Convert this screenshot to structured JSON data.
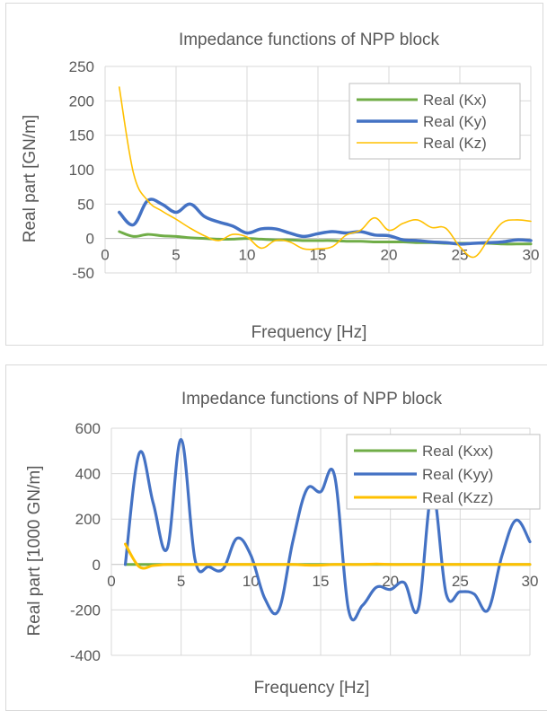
{
  "chart_data": [
    {
      "type": "line",
      "title": "Impedance functions of NPP block",
      "xlabel": "Frequency [Hz]",
      "ylabel": "Real part [GN/m]",
      "xlim": [
        0,
        30
      ],
      "ylim": [
        -50,
        250
      ],
      "xticks": [
        "0",
        "5",
        "10",
        "15",
        "20",
        "25",
        "30"
      ],
      "yticks": [
        "250",
        "200",
        "150",
        "100",
        "50",
        "0",
        "-50"
      ],
      "grid": "horizontal and vertical",
      "legend_position": "top-right",
      "series": [
        {
          "name": "Real (Kx)",
          "color": "#70ad47",
          "x": [
            1,
            2,
            3,
            4,
            5,
            6,
            7,
            8,
            9,
            10,
            11,
            12,
            13,
            14,
            15,
            16,
            17,
            18,
            19,
            20,
            21,
            22,
            23,
            24,
            25,
            26,
            27,
            28,
            29,
            30
          ],
          "y": [
            10,
            3,
            6,
            4,
            3,
            1,
            0,
            -1,
            -1,
            0,
            -1,
            -2,
            -2,
            -3,
            -3,
            -3,
            -4,
            -4,
            -5,
            -5,
            -5,
            -6,
            -6,
            -7,
            -7,
            -7,
            -7,
            -8,
            -8,
            -8
          ]
        },
        {
          "name": "Real (Ky)",
          "color": "#4472c4",
          "x": [
            1,
            2,
            3,
            4,
            5,
            6,
            7,
            8,
            9,
            10,
            11,
            12,
            13,
            14,
            15,
            16,
            17,
            18,
            19,
            20,
            21,
            22,
            23,
            24,
            25,
            26,
            27,
            28,
            29,
            30
          ],
          "y": [
            38,
            20,
            55,
            50,
            38,
            50,
            32,
            24,
            18,
            8,
            14,
            14,
            8,
            3,
            7,
            10,
            8,
            10,
            5,
            4,
            -2,
            -3,
            -5,
            -6,
            -8,
            -7,
            -6,
            -5,
            -2,
            -3
          ]
        },
        {
          "name": "Real (Kz)",
          "color": "#ffc000",
          "x": [
            1,
            2,
            3,
            4,
            5,
            6,
            7,
            8,
            9,
            10,
            11,
            12,
            13,
            14,
            15,
            16,
            17,
            18,
            19,
            20,
            21,
            22,
            23,
            24,
            25,
            26,
            27,
            28,
            29,
            30
          ],
          "y": [
            220,
            95,
            55,
            40,
            28,
            15,
            4,
            -3,
            6,
            2,
            -14,
            -3,
            -5,
            -15,
            -15,
            -12,
            5,
            12,
            30,
            12,
            22,
            27,
            16,
            15,
            -12,
            -27,
            -2,
            23,
            27,
            25
          ]
        }
      ]
    },
    {
      "type": "line",
      "title": "Impedance functions of NPP block",
      "xlabel": "Frequency [Hz]",
      "ylabel": "Real part [1000 GN/m]",
      "xlim": [
        0,
        30
      ],
      "ylim": [
        -400,
        600
      ],
      "xticks": [
        "0",
        "5",
        "10",
        "15",
        "20",
        "25",
        "30"
      ],
      "yticks": [
        "600",
        "400",
        "200",
        "0",
        "-200",
        "-400"
      ],
      "grid": "horizontal and vertical",
      "legend_position": "top-right",
      "series": [
        {
          "name": "Real (Kxx)",
          "color": "#70ad47",
          "x": [
            1,
            2,
            3,
            4,
            5,
            6,
            7,
            8,
            9,
            10,
            11,
            12,
            13,
            14,
            15,
            16,
            17,
            18,
            19,
            20,
            21,
            22,
            23,
            24,
            25,
            26,
            27,
            28,
            29,
            30
          ],
          "y": [
            0,
            0,
            0,
            0,
            0,
            0,
            0,
            0,
            0,
            0,
            0,
            0,
            0,
            0,
            0,
            0,
            0,
            0,
            0,
            0,
            0,
            0,
            0,
            0,
            0,
            0,
            0,
            0,
            0,
            0
          ]
        },
        {
          "name": "Real (Kyy)",
          "color": "#4472c4",
          "x": [
            1,
            2,
            3,
            4,
            5,
            6,
            7,
            8,
            9,
            10,
            11,
            12,
            13,
            14,
            15,
            16,
            17,
            18,
            19,
            20,
            21,
            22,
            23,
            24,
            25,
            26,
            27,
            28,
            29,
            30
          ],
          "y": [
            0,
            490,
            270,
            70,
            550,
            20,
            -10,
            -20,
            115,
            40,
            -150,
            -200,
            100,
            330,
            320,
            390,
            -200,
            -180,
            -100,
            -110,
            -80,
            -195,
            320,
            -130,
            -120,
            -130,
            -200,
            40,
            195,
            100
          ]
        },
        {
          "name": "Real (Kzz)",
          "color": "#ffc000",
          "x": [
            1,
            2,
            3,
            4,
            5,
            6,
            7,
            8,
            9,
            10,
            11,
            12,
            13,
            14,
            15,
            16,
            17,
            18,
            19,
            20,
            21,
            22,
            23,
            24,
            25,
            26,
            27,
            28,
            29,
            30
          ],
          "y": [
            90,
            -10,
            -5,
            0,
            0,
            0,
            0,
            0,
            0,
            0,
            0,
            0,
            0,
            -3,
            -3,
            0,
            0,
            0,
            2,
            0,
            0,
            0,
            0,
            0,
            0,
            0,
            0,
            0,
            0,
            0
          ]
        }
      ]
    }
  ]
}
